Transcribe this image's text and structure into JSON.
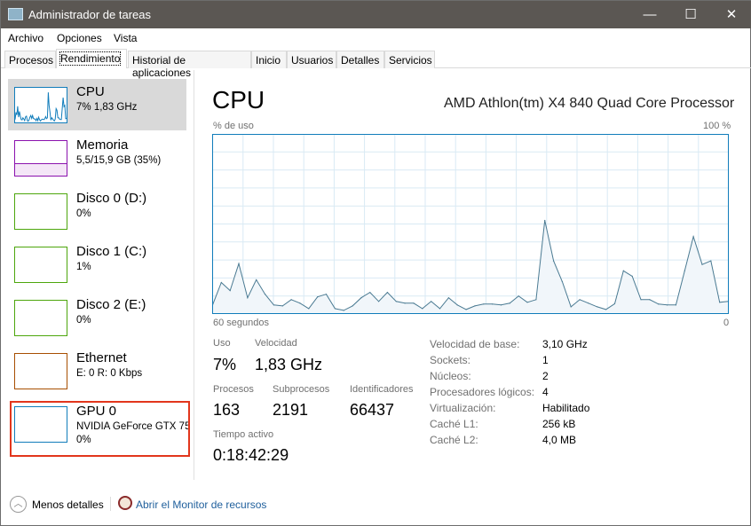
{
  "window": {
    "title": "Administrador de tareas",
    "controls": {
      "minimize": "—",
      "maximize": "☐",
      "close": "✕"
    }
  },
  "menu": [
    "Archivo",
    "Opciones",
    "Vista"
  ],
  "tabs": [
    "Procesos",
    "Rendimiento",
    "Historial de aplicaciones",
    "Inicio",
    "Usuarios",
    "Detalles",
    "Servicios"
  ],
  "active_tab": "Rendimiento",
  "sidebar": {
    "items": [
      {
        "name": "CPU",
        "sub": "7% 1,83 GHz",
        "color": "#117dbb",
        "selected": true
      },
      {
        "name": "Memoria",
        "sub": "5,5/15,9 GB (35%)",
        "color": "#8b12ae",
        "usage": 35
      },
      {
        "name": "Disco 0 (D:)",
        "sub": "0%",
        "color": "#4da60c"
      },
      {
        "name": "Disco 1 (C:)",
        "sub": "1%",
        "color": "#4da60c"
      },
      {
        "name": "Disco 2 (E:)",
        "sub": "0%",
        "color": "#4da60c"
      },
      {
        "name": "Ethernet",
        "sub": "E: 0 R: 0 Kbps",
        "color": "#a74f01"
      },
      {
        "name": "GPU 0",
        "sub": "NVIDIA GeForce GTX 75",
        "sub2": "0%",
        "color": "#117dbb",
        "highlighted": true
      }
    ]
  },
  "main": {
    "title": "CPU",
    "processor": "AMD Athlon(tm) X4 840 Quad Core Processor",
    "stats": {
      "uso_label": "Uso",
      "uso": "7%",
      "velocidad_label": "Velocidad",
      "velocidad": "1,83 GHz",
      "procesos_label": "Procesos",
      "procesos": "163",
      "subprocesos_label": "Subprocesos",
      "subprocesos": "2191",
      "identificadores_label": "Identificadores",
      "identificadores": "66437",
      "tiempo_label": "Tiempo activo",
      "tiempo": "0:18:42:29"
    },
    "details": [
      {
        "k": "Velocidad de base:",
        "v": "3,10 GHz"
      },
      {
        "k": "Sockets:",
        "v": "1"
      },
      {
        "k": "Núcleos:",
        "v": "2"
      },
      {
        "k": "Procesadores lógicos:",
        "v": "4"
      },
      {
        "k": "Virtualización:",
        "v": "Habilitado"
      },
      {
        "k": "Caché L1:",
        "v": "256 kB"
      },
      {
        "k": "Caché L2:",
        "v": "4,0 MB"
      }
    ]
  },
  "chart_data": {
    "type": "area",
    "ylabel": "% de uso",
    "ymax_label": "100 %",
    "xlabel_left": "60 segundos",
    "xlabel_right": "0",
    "ylim": [
      0,
      100
    ],
    "xlim": [
      60,
      0
    ],
    "grid": true,
    "color": "#117dbb",
    "fill": "#f1f6fa",
    "values": [
      5,
      17.5,
      13,
      28,
      9,
      19,
      11,
      5,
      4.5,
      8,
      6,
      3,
      9.5,
      11,
      3,
      2,
      4.5,
      9,
      12,
      7,
      12,
      7,
      6,
      6,
      3,
      7,
      3,
      9,
      5,
      2.5,
      4.5,
      5.5,
      5.5,
      5,
      6,
      10,
      6.5,
      8,
      52,
      29.5,
      18,
      4,
      8,
      6,
      4,
      2.5,
      5.7,
      24,
      21,
      8,
      8,
      5.5,
      5,
      5,
      24,
      43,
      27.5,
      29.5,
      6.5,
      7
    ]
  },
  "footer": {
    "less": "Menos detalles",
    "monitor": "Abrir el Monitor de recursos"
  }
}
